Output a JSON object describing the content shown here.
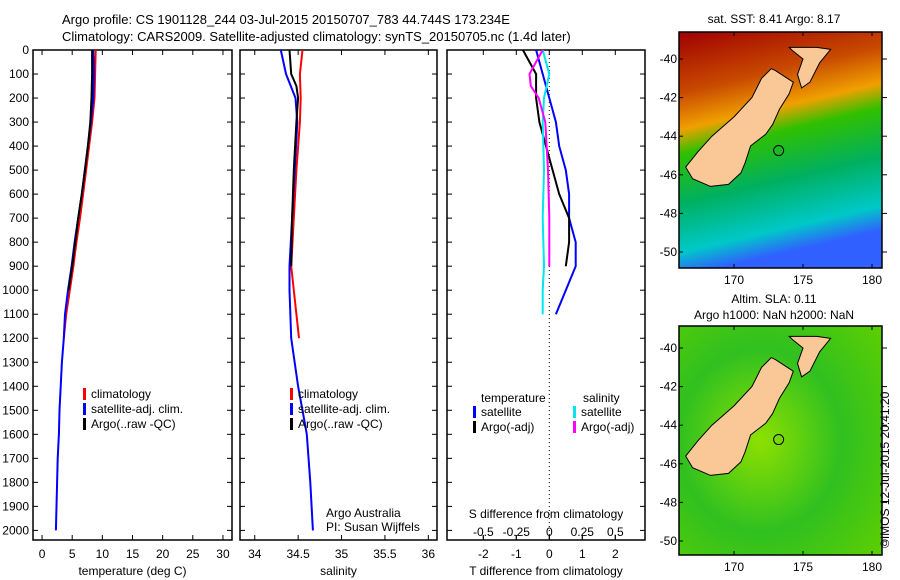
{
  "title": {
    "line1": "Argo profile: CS 1901128_244 03-Jul-2015 20150707_783 44.744S 173.234E",
    "line2": "Climatology: CARS2009. Satellite-adjusted climatology: synTS_20150705.nc (1.4d later)"
  },
  "colors": {
    "climatology": "#ff0000",
    "satellite": "#0000ff",
    "argo": "#000000",
    "sal_satellite": "#00e5ee",
    "sal_argo": "#ff00ff"
  },
  "depth_ticks": [
    0,
    100,
    200,
    300,
    400,
    500,
    600,
    700,
    800,
    900,
    1000,
    1100,
    1200,
    1300,
    1400,
    1500,
    1600,
    1700,
    1800,
    1900,
    2000
  ],
  "credit": {
    "line1": "Argo Australia",
    "line2": "PI: Susan Wijffels"
  },
  "stamp": "©IMOS 12-Jul-2015 20:41:20",
  "chart_data": [
    {
      "type": "line",
      "xlabel": "temperature (deg C)",
      "ylabel": "depth",
      "xlim": [
        -1.5,
        31.5
      ],
      "ylim": [
        2040,
        0
      ],
      "xticks": [
        0,
        5,
        10,
        15,
        20,
        25,
        30
      ],
      "legend": [
        "climatology",
        "satellite-adj. clim.",
        "Argo(..raw -QC)"
      ],
      "series": [
        {
          "name": "climatology",
          "color": "#ff0000",
          "depth": [
            0,
            100,
            200,
            300,
            400,
            500,
            600,
            700,
            800,
            900,
            1000,
            1100,
            1200
          ],
          "values": [
            8.9,
            8.8,
            8.7,
            8.3,
            7.8,
            7.3,
            6.8,
            6.3,
            5.7,
            5.2,
            4.6,
            4.0,
            3.6
          ]
        },
        {
          "name": "satellite-adj. clim.",
          "color": "#0000ff",
          "depth": [
            0,
            100,
            200,
            300,
            400,
            500,
            600,
            700,
            800,
            900,
            1000,
            1100,
            1200,
            1300,
            1400,
            1500,
            1600,
            1700,
            1800,
            1900,
            2000
          ],
          "values": [
            8.5,
            8.6,
            8.5,
            8.1,
            7.6,
            7.1,
            6.6,
            6.0,
            5.4,
            4.9,
            4.3,
            3.8,
            3.6,
            3.3,
            3.1,
            2.9,
            2.8,
            2.6,
            2.5,
            2.4,
            2.3
          ]
        },
        {
          "name": "Argo(..raw -QC)",
          "color": "#000000",
          "depth": [
            0,
            100,
            200,
            300,
            400,
            500,
            600,
            700,
            800,
            900,
            1000
          ],
          "values": [
            8.3,
            8.3,
            8.2,
            8.0,
            7.6,
            7.1,
            6.6,
            6.0,
            5.5,
            5.0,
            4.4
          ]
        }
      ]
    },
    {
      "type": "line",
      "xlabel": "salinity",
      "ylabel": "depth",
      "xlim": [
        33.83,
        36.1
      ],
      "ylim": [
        2040,
        0
      ],
      "xticks": [
        34,
        34.5,
        35,
        35.5,
        36
      ],
      "legend": [
        "climatology",
        "satellite-adj. clim.",
        "Argo(..raw -QC)"
      ],
      "series": [
        {
          "name": "climatology",
          "color": "#ff0000",
          "depth": [
            0,
            100,
            200,
            300,
            500,
            700,
            900,
            1000,
            1100,
            1200
          ],
          "values": [
            34.55,
            34.52,
            34.53,
            34.52,
            34.48,
            34.45,
            34.42,
            34.45,
            34.48,
            34.51
          ]
        },
        {
          "name": "satellite-adj. clim.",
          "color": "#0000ff",
          "depth": [
            0,
            50,
            100,
            200,
            300,
            500,
            700,
            900,
            1000,
            1200,
            1400,
            1500,
            1600,
            1800,
            2000
          ],
          "values": [
            34.3,
            34.33,
            34.36,
            34.47,
            34.49,
            34.46,
            34.43,
            34.4,
            34.4,
            34.42,
            34.5,
            34.55,
            34.6,
            34.64,
            34.67
          ]
        },
        {
          "name": "Argo(..raw -QC)",
          "color": "#000000",
          "depth": [
            0,
            100,
            150,
            200,
            300,
            500,
            700,
            900
          ],
          "values": [
            34.4,
            34.42,
            34.48,
            34.5,
            34.48,
            34.45,
            34.43,
            34.42
          ]
        }
      ]
    },
    {
      "type": "line",
      "xlabel": "T difference from climatology",
      "xlabel2": "S difference from climatology",
      "xlim": [
        -3.1,
        2.9
      ],
      "ylim": [
        2040,
        0
      ],
      "xticks": [
        -2,
        -1,
        0,
        1,
        2
      ],
      "xticks2": [
        "-0.5",
        "-0.25",
        "0",
        "0.25",
        "0.5"
      ],
      "legend_t_title": "temperature",
      "legend_s_title": "salinity",
      "legend": [
        "satellite",
        "Argo(-adj)",
        "satellite",
        "Argo(-adj)"
      ],
      "series": [
        {
          "name": "T satellite",
          "color": "#0000ff",
          "depth": [
            0,
            100,
            200,
            300,
            400,
            500,
            600,
            700,
            800,
            900,
            1000,
            1100
          ],
          "values": [
            -0.4,
            -0.2,
            0.0,
            0.2,
            0.3,
            0.5,
            0.6,
            0.6,
            0.8,
            0.8,
            0.5,
            0.2
          ]
        },
        {
          "name": "T Argo(-adj)",
          "color": "#000000",
          "depth": [
            0,
            50,
            100,
            200,
            300,
            400,
            500,
            600,
            700,
            800,
            900
          ],
          "values": [
            -0.8,
            -0.6,
            -0.4,
            -0.4,
            -0.3,
            -0.1,
            0.1,
            0.3,
            0.6,
            0.6,
            0.5
          ]
        },
        {
          "name": "S satellite",
          "color": "#00e5ee",
          "depth": [
            0,
            100,
            200,
            300,
            500,
            700,
            900,
            1000,
            1100
          ],
          "values": [
            -0.05,
            0.0,
            -0.04,
            -0.05,
            -0.04,
            -0.05,
            -0.04,
            -0.05,
            -0.05
          ]
        },
        {
          "name": "S Argo(-adj)",
          "color": "#ff00ff",
          "depth": [
            0,
            100,
            150,
            200,
            300,
            500,
            700,
            900
          ],
          "values": [
            -0.05,
            -0.15,
            -0.14,
            -0.08,
            -0.03,
            -0.01,
            0.0,
            0.0
          ]
        }
      ]
    }
  ],
  "maps": [
    {
      "title1": "sat. SST: 8.41  Argo: 8.17",
      "title2": "",
      "lon_ticks": [
        "170",
        "175",
        "180"
      ],
      "lat_ticks": [
        "-40",
        "-42",
        "-44",
        "-46",
        "-48",
        "-50"
      ]
    },
    {
      "title1": "Altim. SLA: 0.11",
      "title2": "Argo h1000: NaN h2000: NaN",
      "lon_ticks": [
        "170",
        "175",
        "180"
      ],
      "lat_ticks": [
        "-40",
        "-42",
        "-44",
        "-46",
        "-48",
        "-50"
      ]
    }
  ]
}
